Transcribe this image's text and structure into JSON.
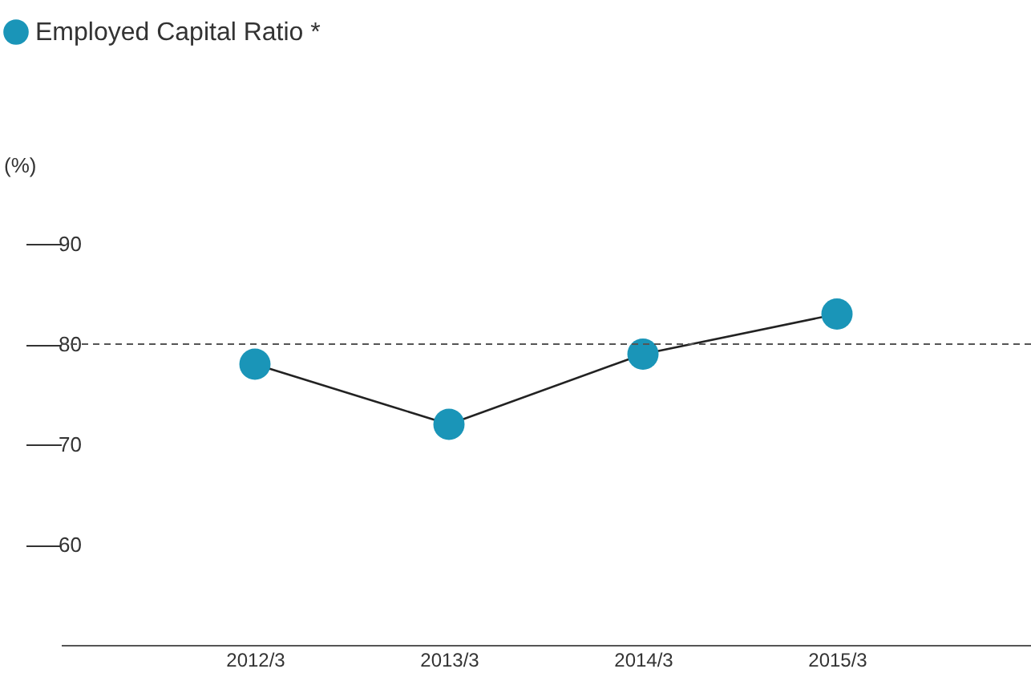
{
  "chart_data": {
    "type": "line",
    "ylabel": "(%)",
    "categories": [
      "2012/3",
      "2013/3",
      "2014/3",
      "2015/3"
    ],
    "series": [
      {
        "name": "Employed Capital Ratio *",
        "color": "#1a95b8",
        "values": [
          78,
          72,
          79,
          83
        ]
      }
    ],
    "ylim": [
      50,
      90
    ],
    "yticks": [
      60,
      70,
      80,
      90
    ],
    "ref_lines": [
      {
        "axis": "y",
        "value": 80,
        "color": "#555555",
        "line_style": "dashed"
      }
    ],
    "marker": "circle",
    "legend": "top left",
    "grid": false
  }
}
